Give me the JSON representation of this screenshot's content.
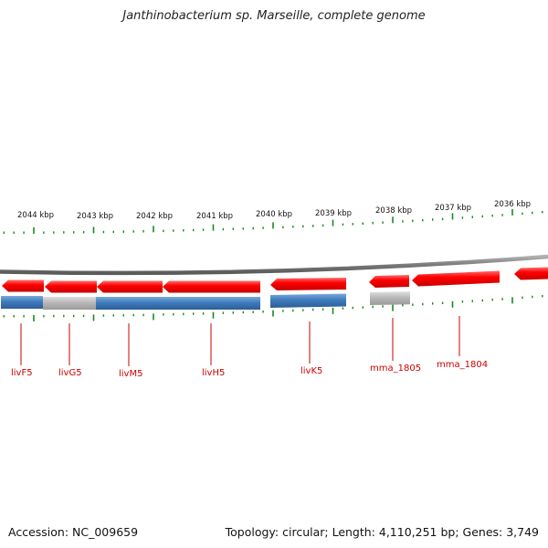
{
  "title": "Janthinobacterium sp. Marseille, complete genome",
  "footer": {
    "accession": "Accession: NC_009659",
    "summary": "Topology: circular; Length: 4,110,251 bp; Genes: 3,749"
  },
  "colors": {
    "gene_forward_strand": "#ff0000",
    "cds_track": "#3f7bbd",
    "cds_track_unmatched": "#b5b5b5",
    "backbone": "#808080",
    "tick": "#1a8a1a",
    "gene_label": "#cc0000",
    "scale_label": "#111111"
  },
  "scale_labels": [
    "2044 kbp",
    "2043 kbp",
    "2042 kbp",
    "2041 kbp",
    "2040 kbp",
    "2039 kbp",
    "2038 kbp",
    "2037 kbp",
    "2036 kbp"
  ],
  "gene_labels": [
    "livF5",
    "livG5",
    "livM5",
    "livH5",
    "livK5",
    "mma_1805",
    "mma_1804"
  ],
  "icons": [
    "gene-arrow",
    "scale-tick",
    "genome-backbone"
  ]
}
